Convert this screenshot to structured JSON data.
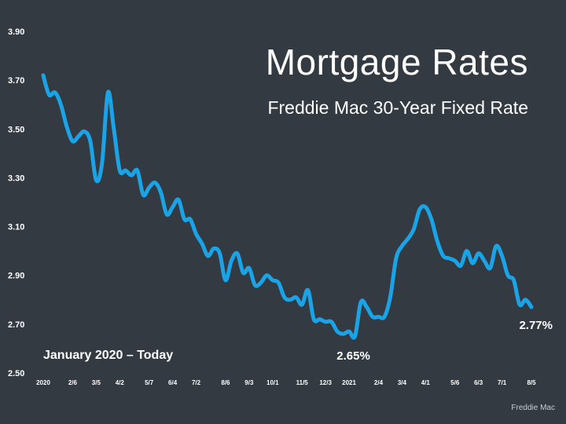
{
  "header": {
    "title": "Mortgage Rates",
    "subtitle": "Freddie Mac 30-Year Fixed Rate"
  },
  "range_label": "January 2020 – Today",
  "source": "Freddie Mac",
  "colors": {
    "background": "#333a42",
    "line": "#1aa3e6",
    "text": "#ffffff"
  },
  "chart_data": {
    "type": "line",
    "title": "Mortgage Rates",
    "subtitle": "Freddie Mac 30-Year Fixed Rate",
    "xlabel": "",
    "ylabel": "",
    "ylim": [
      2.5,
      3.9
    ],
    "yticks": [
      "3.90",
      "3.70",
      "3.50",
      "3.30",
      "3.10",
      "2.90",
      "2.70",
      "2.50"
    ],
    "xticks": [
      {
        "label": "2020",
        "week": 0
      },
      {
        "label": "2/6",
        "week": 5
      },
      {
        "label": "3/5",
        "week": 9
      },
      {
        "label": "4/2",
        "week": 13
      },
      {
        "label": "5/7",
        "week": 18
      },
      {
        "label": "6/4",
        "week": 22
      },
      {
        "label": "7/2",
        "week": 26
      },
      {
        "label": "8/6",
        "week": 31
      },
      {
        "label": "9/3",
        "week": 35
      },
      {
        "label": "10/1",
        "week": 39
      },
      {
        "label": "11/5",
        "week": 44
      },
      {
        "label": "12/3",
        "week": 48
      },
      {
        "label": "2021",
        "week": 52
      },
      {
        "label": "2/4",
        "week": 57
      },
      {
        "label": "3/4",
        "week": 61
      },
      {
        "label": "4/1",
        "week": 65
      },
      {
        "label": "5/6",
        "week": 70
      },
      {
        "label": "6/3",
        "week": 74
      },
      {
        "label": "7/1",
        "week": 78
      },
      {
        "label": "8/5",
        "week": 83
      }
    ],
    "grid": false,
    "legend": "none",
    "series": [
      {
        "values": [
          3.72,
          3.64,
          3.65,
          3.6,
          3.51,
          3.45,
          3.47,
          3.49,
          3.45,
          3.29,
          3.36,
          3.65,
          3.5,
          3.33,
          3.33,
          3.31,
          3.33,
          3.23,
          3.26,
          3.28,
          3.24,
          3.15,
          3.18,
          3.21,
          3.13,
          3.13,
          3.07,
          3.03,
          2.98,
          3.01,
          2.99,
          2.88,
          2.96,
          2.99,
          2.91,
          2.93,
          2.86,
          2.87,
          2.9,
          2.88,
          2.87,
          2.81,
          2.8,
          2.81,
          2.78,
          2.84,
          2.72,
          2.72,
          2.71,
          2.71,
          2.67,
          2.66,
          2.67,
          2.65,
          2.79,
          2.77,
          2.73,
          2.73,
          2.73,
          2.81,
          2.97,
          3.02,
          3.05,
          3.09,
          3.17,
          3.18,
          3.13,
          3.04,
          2.98,
          2.97,
          2.96,
          2.94,
          3.0,
          2.95,
          2.99,
          2.96,
          2.93,
          3.02,
          2.98,
          2.9,
          2.88,
          2.78,
          2.8,
          2.77
        ]
      }
    ],
    "annotations": [
      {
        "label": "2.65%",
        "week": 53,
        "value": 2.65
      },
      {
        "label": "2.77%",
        "week": 83,
        "value": 2.77
      }
    ]
  }
}
